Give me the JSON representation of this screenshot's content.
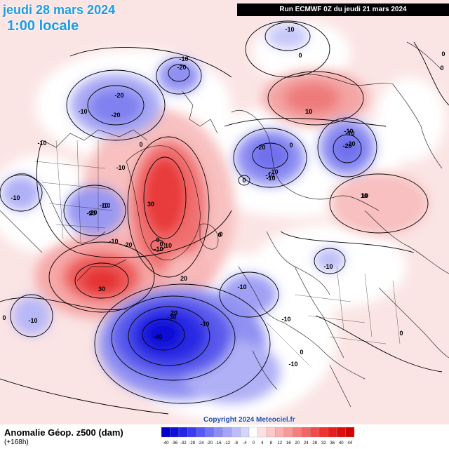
{
  "header": {
    "valid_date": "jeudi 28 mars 2024",
    "valid_time": "1:00 locale",
    "run_info": "Run ECMWF 0Z du jeudi 21 mars 2024"
  },
  "footer": {
    "field_title": "Anomalie Géop. z500 (dam)",
    "forecast_hour": "(+168h)",
    "copyright": "Copyright 2024 Meteociel.fr"
  },
  "legend": {
    "ticks": [
      "-40",
      "-36",
      "-32",
      "-28",
      "-24",
      "-20",
      "-16",
      "-12",
      "-8",
      "-4",
      "0",
      "4",
      "8",
      "12",
      "16",
      "20",
      "24",
      "28",
      "32",
      "36",
      "40",
      "44"
    ],
    "colors": [
      "#0000c8",
      "#1010dc",
      "#2424e6",
      "#3c3cee",
      "#5858f2",
      "#7272f4",
      "#8c8cf6",
      "#a4a4f8",
      "#bcbcfa",
      "#d4d4fc",
      "#ffffff",
      "#fde0e0",
      "#fcc8c8",
      "#fab0b0",
      "#f89898",
      "#f67e7e",
      "#f46464",
      "#f24a4a",
      "#ee3232",
      "#e81e1e",
      "#e00c0c",
      "#d00000"
    ]
  },
  "contour_labels": [
    "-10",
    "-20",
    "-20",
    "-20",
    "-10",
    "-20",
    "-10",
    "0",
    "-10",
    "0",
    "10",
    "-20",
    "-10",
    "-10",
    "-10",
    "0",
    "-10",
    "-20",
    "-10",
    "0",
    "0",
    "10",
    "-10",
    "-20",
    "-10",
    "-10",
    "-10",
    "30",
    "-20",
    "0",
    "-10",
    "10",
    "30",
    "20",
    "20",
    "-10",
    "-10",
    "-20",
    "-30",
    "-40",
    "-10",
    "-10",
    "0",
    "-10",
    "0",
    "0",
    "-10",
    "-10",
    "0",
    "0",
    "0",
    "0",
    "10",
    "10"
  ]
}
